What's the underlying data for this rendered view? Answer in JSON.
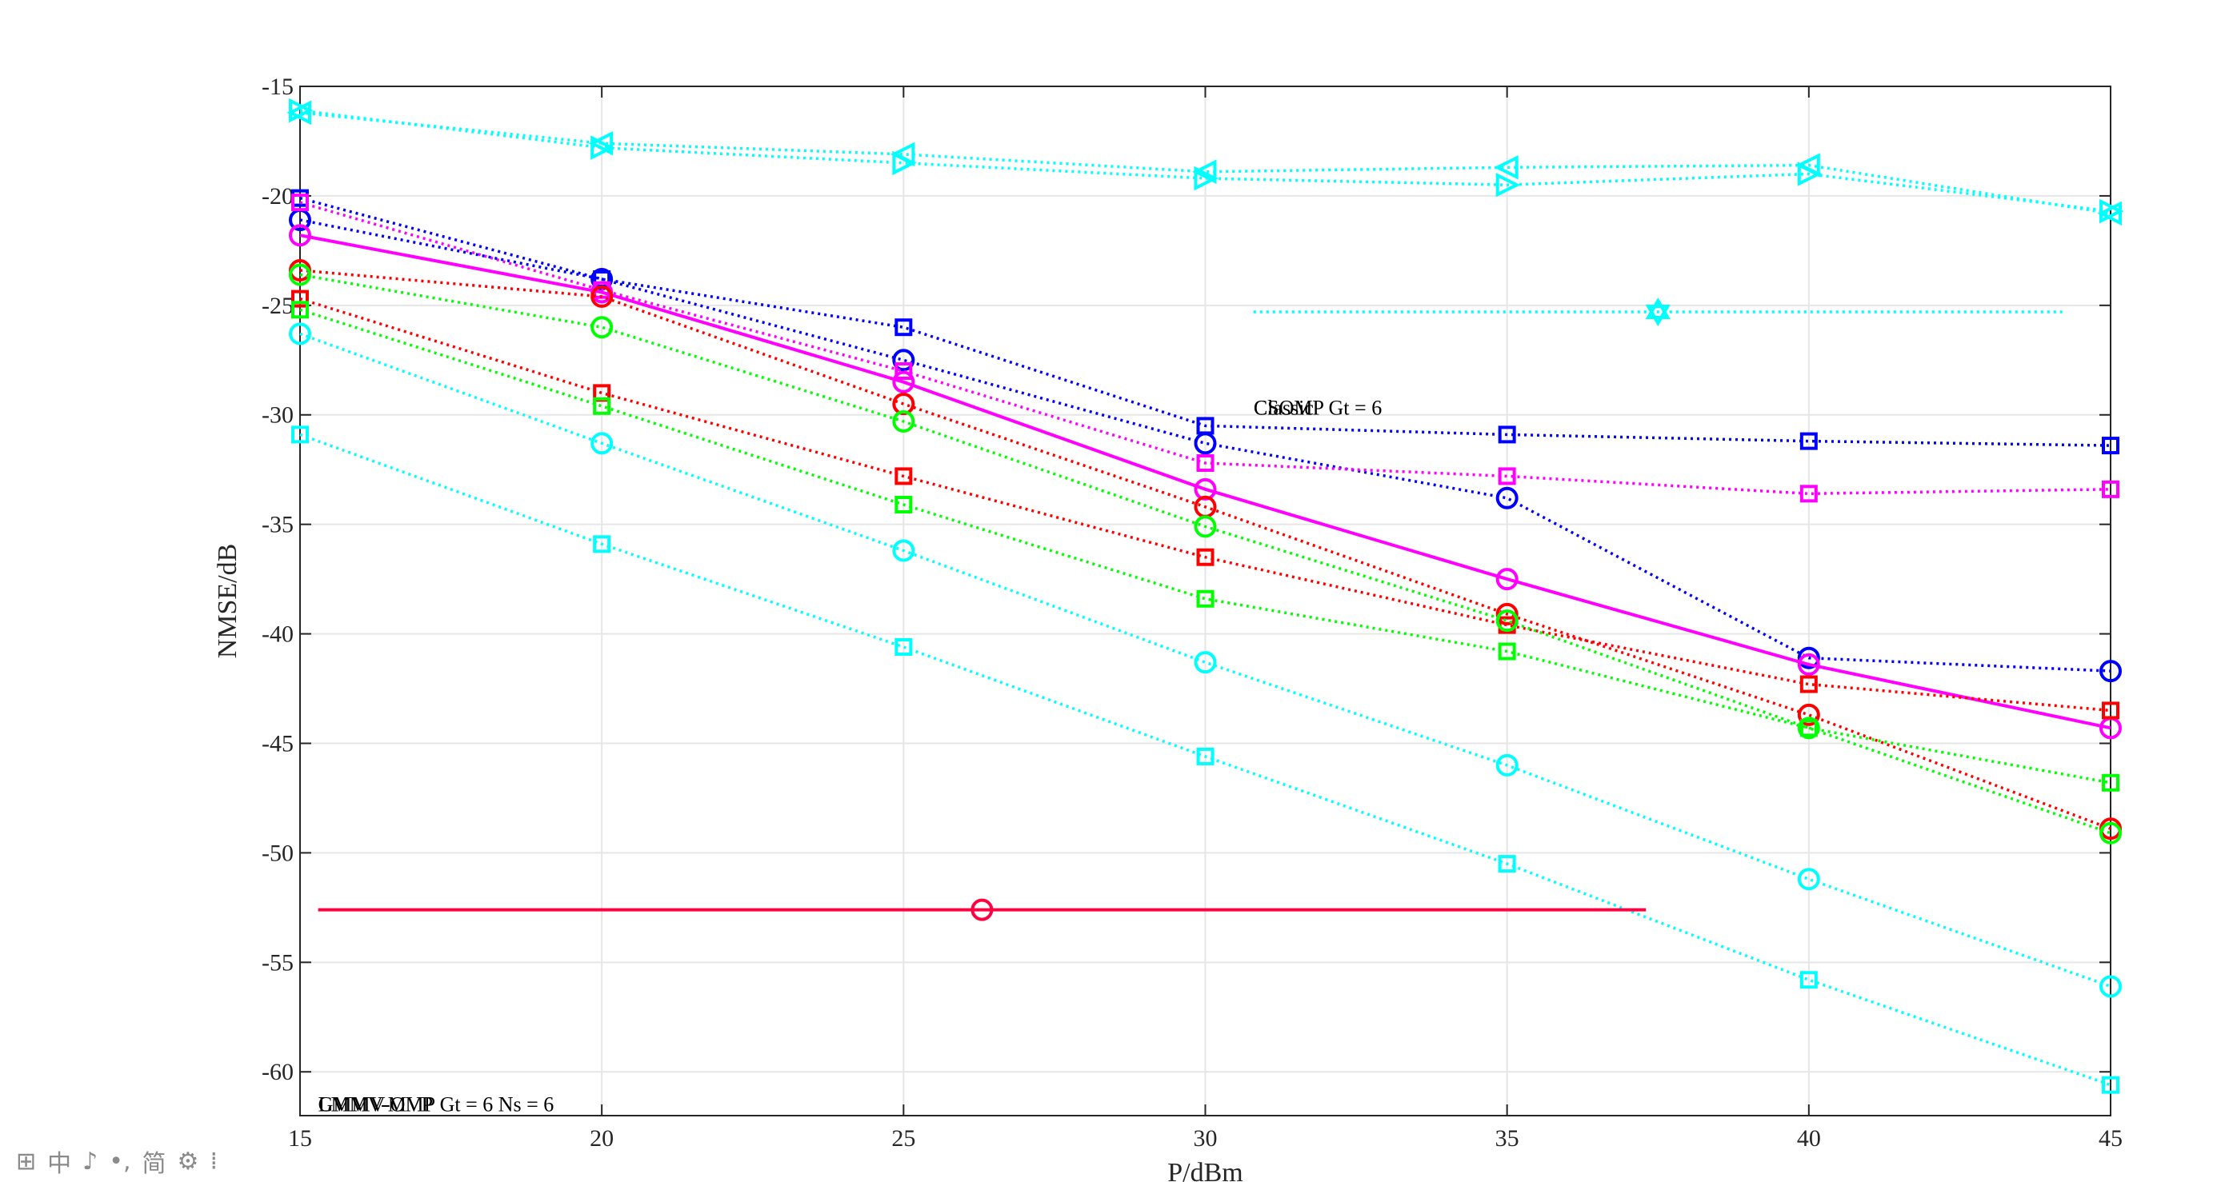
{
  "chart_data": {
    "type": "line",
    "title": "",
    "xlabel": "P/dBm",
    "ylabel": "NMSE/dB",
    "xlim": [
      15,
      45
    ],
    "ylim": [
      -62,
      -15
    ],
    "xticks": [
      "15",
      "20",
      "25",
      "30",
      "35",
      "40",
      "45"
    ],
    "yticks": [
      "-15",
      "-20",
      "-25",
      "-30",
      "-35",
      "-40",
      "-45",
      "-50",
      "-55",
      "-60"
    ],
    "grid": true,
    "x": [
      15,
      20,
      25,
      30,
      35,
      40,
      45
    ],
    "series": [
      {
        "name": "cyan-triangle-left",
        "color": "#00FFFF",
        "style": "dotted",
        "marker": "triangle-left",
        "values": [
          -16.2,
          -17.6,
          -18.1,
          -18.9,
          -18.7,
          -18.6,
          -20.8
        ]
      },
      {
        "name": "cyan-triangle-right",
        "color": "#00FFFF",
        "style": "dotted",
        "marker": "triangle-right",
        "values": [
          -16.1,
          -17.8,
          -18.5,
          -19.2,
          -19.5,
          -19.0,
          -20.7
        ]
      },
      {
        "name": "blue-square",
        "color": "#0000FF",
        "style": "dotted",
        "marker": "square",
        "values": [
          -20.1,
          -23.8,
          -26.0,
          -30.5,
          -30.9,
          -31.2,
          -31.4
        ]
      },
      {
        "name": "blue-circle",
        "color": "#0000FF",
        "style": "dotted",
        "marker": "circle",
        "values": [
          -21.1,
          -23.8,
          -27.5,
          -31.3,
          -33.8,
          -41.1,
          -41.7
        ]
      },
      {
        "name": "magenta-square",
        "color": "#FF00FF",
        "style": "dotted",
        "marker": "square",
        "values": [
          -20.3,
          -24.3,
          -28.0,
          -32.2,
          -32.8,
          -33.6,
          -33.4
        ]
      },
      {
        "name": "magenta-circle",
        "color": "#FF00FF",
        "style": "solid",
        "marker": "circle",
        "values": [
          -21.8,
          -24.4,
          -28.5,
          -33.4,
          -37.5,
          -41.4,
          -44.3
        ]
      },
      {
        "name": "red-circle",
        "color": "#FF0000",
        "style": "dotted",
        "marker": "circle",
        "values": [
          -23.4,
          -24.6,
          -29.5,
          -34.2,
          -39.1,
          -43.7,
          -48.9
        ]
      },
      {
        "name": "red-square",
        "color": "#FF0000",
        "style": "dotted",
        "marker": "square",
        "values": [
          -24.7,
          -29.0,
          -32.8,
          -36.5,
          -39.6,
          -42.3,
          -43.5
        ]
      },
      {
        "name": "green-circle",
        "color": "#00FF00",
        "style": "dotted",
        "marker": "circle",
        "values": [
          -23.6,
          -26.0,
          -30.3,
          -35.1,
          -39.4,
          -44.3,
          -49.1
        ]
      },
      {
        "name": "green-square",
        "color": "#00FF00",
        "style": "dotted",
        "marker": "square",
        "values": [
          -25.2,
          -29.6,
          -34.1,
          -38.4,
          -40.8,
          -44.3,
          -46.8
        ]
      },
      {
        "name": "cyan-circle",
        "color": "#00FFFF",
        "style": "dotted",
        "marker": "circle",
        "values": [
          -26.3,
          -31.3,
          -36.2,
          -41.3,
          -46.0,
          -51.2,
          -56.1
        ]
      },
      {
        "name": "cyan-square",
        "color": "#00FFFF",
        "style": "dotted",
        "marker": "square",
        "values": [
          -30.9,
          -35.9,
          -40.6,
          -45.6,
          -50.5,
          -55.8,
          -60.6
        ]
      }
    ],
    "extra_lines": [
      {
        "name": "cyan-hexagram-ref",
        "color": "#00FFFF",
        "style": "dotted",
        "marker": "hexagram",
        "x_range": [
          30.8,
          44.2
        ],
        "y": -25.3,
        "marker_x": 37.5
      },
      {
        "name": "red-magenta-ref",
        "color": "#FF0040",
        "style": "solid",
        "marker": "circle",
        "x_range": [
          15.3,
          37.3
        ],
        "y": -52.6,
        "marker_x": 26.3
      }
    ],
    "annotations": [
      {
        "text": "CSOMP Gt = 6",
        "x": 30.8,
        "y": -30.0
      },
      {
        "text": "Classic",
        "x": 30.8,
        "y": -30.0
      },
      {
        "text": "GMMV-OMP Gt = 6 Ns = 6",
        "x": 15.3,
        "y": -61.8
      },
      {
        "text": "LMMV-MVP",
        "x": 15.3,
        "y": -61.8
      }
    ]
  },
  "ime_toolbar": {
    "icons": [
      "grid-icon",
      "chinese-char-icon",
      "moon-icon",
      "dots-icon",
      "traditional-icon",
      "gear-icon",
      "more-icon"
    ],
    "glyphs": [
      "⊞",
      "中",
      "♪",
      "•,",
      "简",
      "⚙",
      "⁞"
    ]
  }
}
